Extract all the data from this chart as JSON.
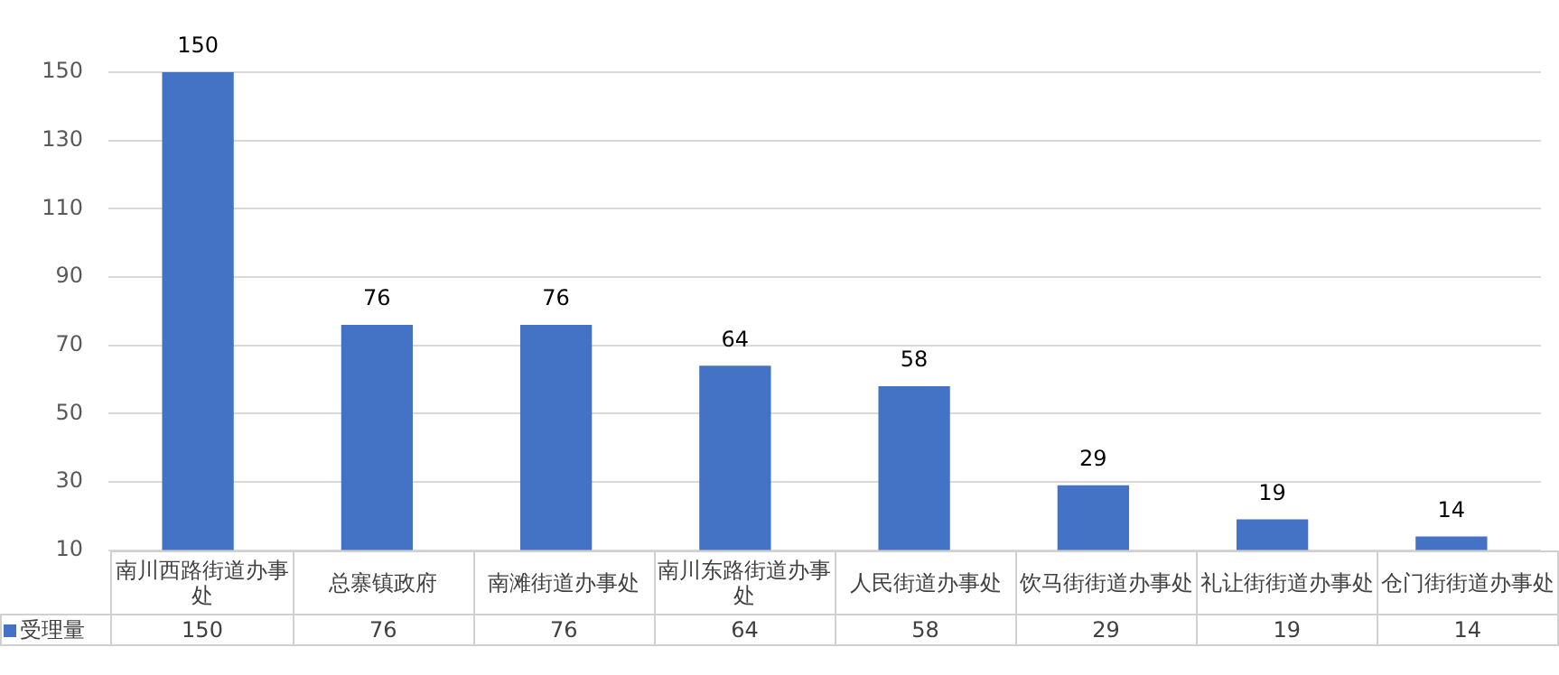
{
  "chart_data": {
    "type": "bar",
    "categories": [
      "南川西路街道办事处",
      "总寨镇政府",
      "南滩街道办事处",
      "南川东路街道办事处",
      "人民街道办事处",
      "饮马街街道办事处",
      "礼让街街道办事处",
      "仓门街街道办事处"
    ],
    "series": [
      {
        "name": "受理量",
        "color": "#4472c4",
        "values": [
          150,
          76,
          76,
          64,
          58,
          29,
          19,
          14
        ]
      }
    ],
    "annotations": [
      {
        "text": "150",
        "x": "南川西路街道办事处",
        "y": 150
      },
      {
        "text": "76",
        "x": "总寨镇政府",
        "y": 76
      },
      {
        "text": "76",
        "x": "南滩街道办事处",
        "y": 76
      },
      {
        "text": "64",
        "x": "南川东路街道办事处",
        "y": 64
      },
      {
        "text": "58",
        "x": "人民街道办事处",
        "y": 58
      },
      {
        "text": "29",
        "x": "饮马街街道办事处",
        "y": 29
      },
      {
        "text": "19",
        "x": "礼让街街道办事处",
        "y": 19
      },
      {
        "text": "14",
        "x": "仓门街街道办事处",
        "y": 14
      }
    ],
    "ylim": [
      10,
      150
    ],
    "yticks": [
      10,
      30,
      50,
      70,
      90,
      110,
      130,
      150
    ],
    "grid": "y",
    "data_labels": true,
    "legend": "bottom"
  }
}
